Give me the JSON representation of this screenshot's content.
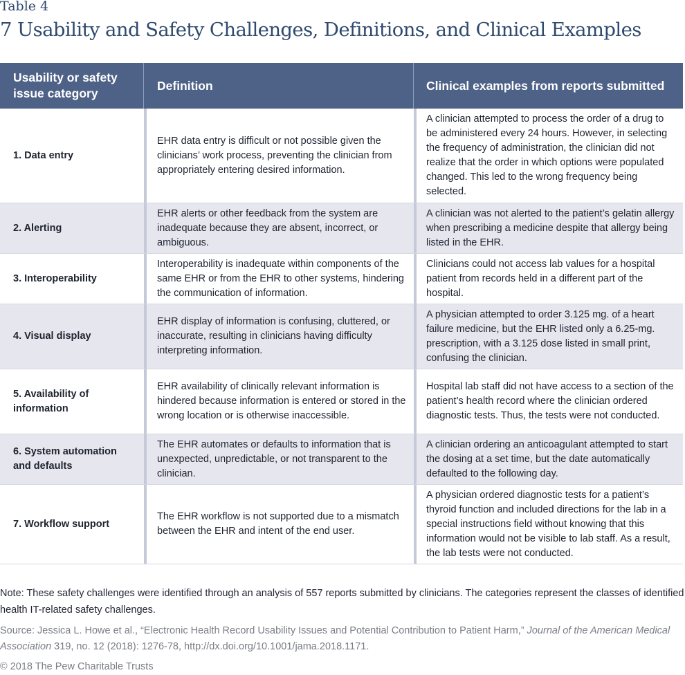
{
  "table_label": "Table 4",
  "title": "7 Usability and Safety Challenges, Definitions, and Clinical Examples",
  "headers": {
    "category": "Usability or safety issue category",
    "definition": "Definition",
    "examples": "Clinical examples from reports submitted"
  },
  "rows": [
    {
      "category": "1. Data entry",
      "definition": "EHR data entry is difficult or not possible given the clinicians’ work process, preventing the clinician from appropriately entering desired information.",
      "example": "A clinician attempted to process the order of a drug to be administered every 24 hours. However, in selecting the frequency of administration, the clinician did not realize that the order in which options were populated changed. This led to the wrong frequency being selected."
    },
    {
      "category": "2. Alerting",
      "definition": "EHR alerts or other feedback from the system are inadequate because they are absent, incorrect, or ambiguous.",
      "example": "A clinician was not alerted to the patient’s gelatin allergy when prescribing a medicine despite that allergy being listed in the EHR."
    },
    {
      "category": "3. Interoperability",
      "definition": "Interoperability is inadequate within components of the same EHR or from the EHR to other systems, hindering the communication of information.",
      "example": "Clinicians could not access lab values for a hospital patient from records held in a different part of the hospital."
    },
    {
      "category": "4. Visual display",
      "definition": "EHR display of information is confusing, cluttered, or inaccurate, resulting in clinicians having difficulty interpreting information.",
      "example": "A physician attempted to order 3.125 mg. of a heart failure medicine, but the EHR listed only a 6.25-mg. prescription, with a 3.125 dose listed in small print, confusing the clinician."
    },
    {
      "category": "5. Availability of information",
      "definition": "EHR availability of clinically relevant information is hindered because information is entered or stored in the wrong location or is otherwise inaccessible.",
      "example": "Hospital lab staff did not have access to a section of the patient’s health record where the clinician ordered diagnostic tests. Thus, the tests were not conducted."
    },
    {
      "category": "6. System automation and defaults",
      "definition": "The EHR automates or defaults to information that is unexpected, unpredictable, or not transparent to the clinician.",
      "example": "A clinician ordering an anticoagulant attempted to start the dosing at a set time, but the date automatically defaulted to the following day."
    },
    {
      "category": "7. Workflow support",
      "definition": "The EHR workflow is not supported due to a mismatch between the EHR and intent of the end user.",
      "example": "A physician ordered diagnostic tests for a patient’s thyroid function and included directions for the lab in a special instructions field without knowing that this information would not be visible to lab staff. As a result, the lab tests were not conducted."
    }
  ],
  "note": "Note: These safety challenges were identified through an analysis of 557 reports submitted by clinicians. The categories represent the classes of identified health IT-related safety challenges.",
  "source": {
    "prefix": "Source: Jessica L. Howe et al., “Electronic Health Record Usability Issues and Potential Contribution to Patient Harm,” ",
    "journal": "Journal of the American Medical Association",
    "suffix": " 319, no. 12 (2018): 1276-78, http://dx.doi.org/10.1001/jama.2018.1171."
  },
  "copyright": "© 2018 The Pew Charitable Trusts"
}
